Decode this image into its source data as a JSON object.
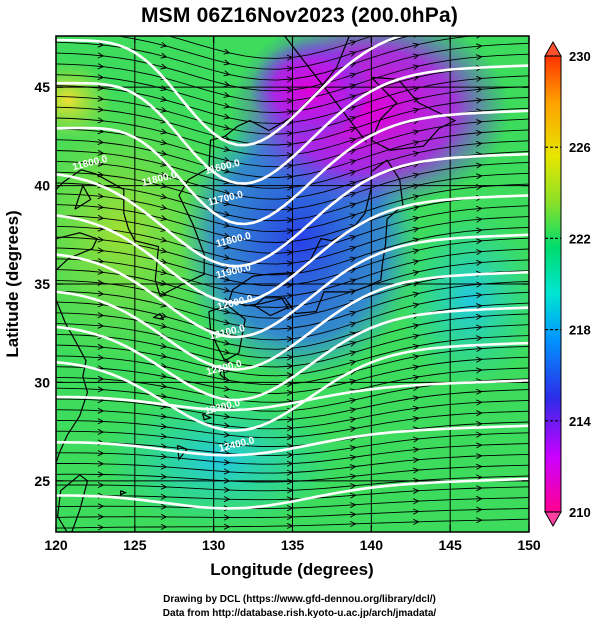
{
  "title": "MSM 06Z16Nov2023 (200.0hPa)",
  "map": {
    "lon_range": [
      120,
      150
    ],
    "lat_range": [
      22.4,
      47.6
    ],
    "xlabel": "Longitude (degrees)",
    "ylabel": "Latitude  (degrees)",
    "xticks": [
      "120",
      "125",
      "130",
      "135",
      "140",
      "145",
      "150"
    ],
    "xtick_values": [
      120,
      125,
      130,
      135,
      140,
      145,
      150
    ],
    "yticks": [
      "25",
      "30",
      "35",
      "40",
      "45"
    ],
    "ytick_values": [
      25,
      30,
      35,
      40,
      45
    ],
    "shaded_field": "temperature (K)",
    "contour_field": "geopotential height (m)",
    "contour_labels": [
      {
        "text": "11800.0",
        "lon": 122.2,
        "lat": 41.0
      },
      {
        "text": "11800.0",
        "lon": 126.6,
        "lat": 40.2
      },
      {
        "text": "11600.0",
        "lon": 130.6,
        "lat": 40.8
      },
      {
        "text": "11700.0",
        "lon": 130.8,
        "lat": 39.2
      },
      {
        "text": "11800.0",
        "lon": 131.3,
        "lat": 37.1
      },
      {
        "text": "11900.0",
        "lon": 131.3,
        "lat": 35.5
      },
      {
        "text": "12000.0",
        "lon": 131.4,
        "lat": 33.9
      },
      {
        "text": "12100.0",
        "lon": 130.9,
        "lat": 32.4
      },
      {
        "text": "12200.0",
        "lon": 130.7,
        "lat": 30.6
      },
      {
        "text": "12300.0",
        "lon": 130.6,
        "lat": 28.6
      },
      {
        "text": "12400.0",
        "lon": 131.5,
        "lat": 26.7
      }
    ]
  },
  "colorbar": {
    "min": 210,
    "max": 230,
    "labels": [
      "230",
      "226",
      "222",
      "218",
      "214",
      "210"
    ],
    "label_values": [
      230,
      226,
      222,
      218,
      214,
      210
    ],
    "colors": [
      "#ff0090",
      "#cc00ff",
      "#2c2ce8",
      "#0096ff",
      "#00e6d2",
      "#00dc6e",
      "#8ce028",
      "#e6e600",
      "#ffa000",
      "#ff3200"
    ]
  },
  "credits": {
    "line1": "Drawing by DCL (https://www.gfd-dennou.org/library/dcl/)",
    "line2": "Data from http://database.rish.kyoto-u.ac.jp/arch/jmadata/"
  }
}
